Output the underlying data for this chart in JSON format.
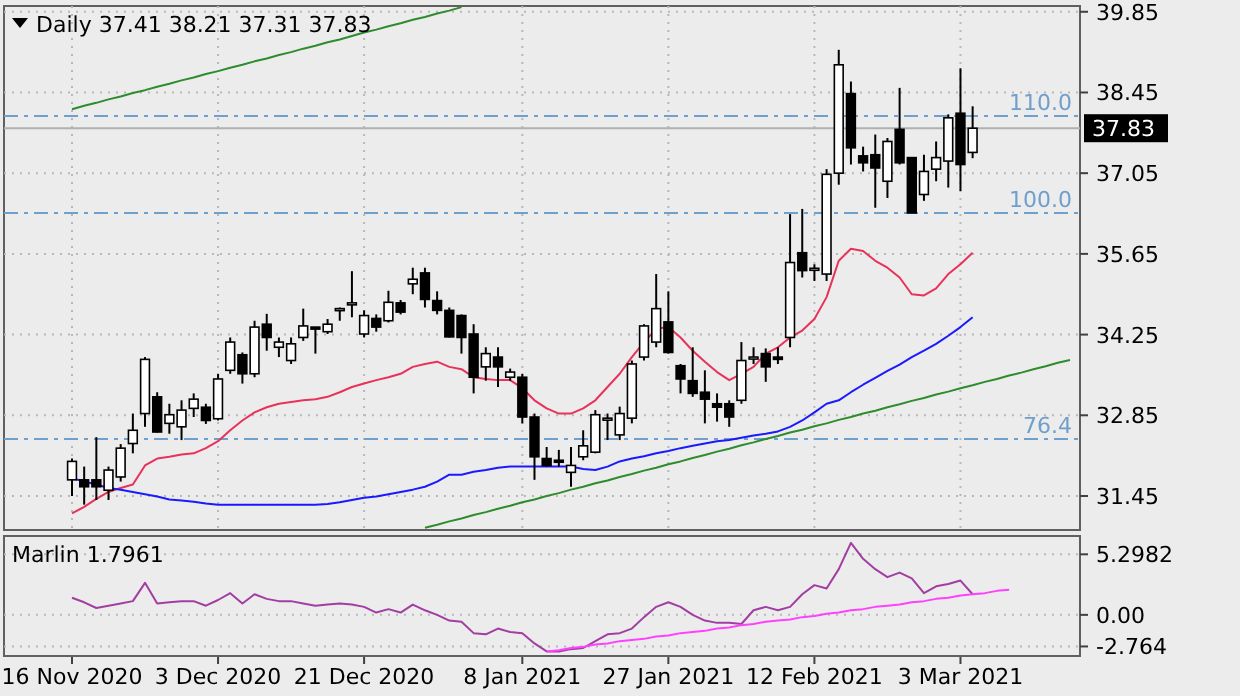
{
  "chart_data": [
    {
      "type": "candlestick",
      "title": "Daily 37.41 38.21 37.31 37.83",
      "categories": [
        "16 Nov 2020",
        null,
        null,
        null,
        null,
        null,
        null,
        null,
        null,
        null,
        null,
        null,
        "3 Dec 2020",
        null,
        null,
        null,
        null,
        null,
        null,
        null,
        null,
        null,
        null,
        null,
        "21 Dec 2020",
        null,
        null,
        null,
        null,
        null,
        null,
        null,
        null,
        null,
        null,
        null,
        null,
        "8 Jan 2021",
        null,
        null,
        null,
        null,
        null,
        null,
        null,
        null,
        null,
        null,
        null,
        "27 Jan 2021",
        null,
        null,
        null,
        null,
        null,
        null,
        null,
        null,
        null,
        null,
        null,
        "12 Feb 2021",
        null,
        null,
        null,
        null,
        null,
        null,
        null,
        null,
        null,
        null,
        null,
        "3 Mar 2021",
        null,
        null,
        null,
        null,
        null,
        null,
        null,
        null,
        null
      ],
      "ohlc": [
        [
          31.73,
          32.1,
          31.45,
          32.05
        ],
        [
          31.73,
          31.96,
          31.3,
          31.61
        ],
        [
          31.73,
          32.47,
          31.38,
          31.61
        ],
        [
          31.55,
          31.96,
          31.38,
          31.9
        ],
        [
          31.78,
          32.35,
          31.7,
          32.28
        ],
        [
          32.36,
          32.88,
          32.19,
          32.59
        ],
        [
          32.88,
          33.86,
          32.65,
          33.82
        ],
        [
          33.17,
          33.25,
          32.55,
          32.56
        ],
        [
          32.71,
          33.05,
          32.53,
          32.86
        ],
        [
          32.65,
          33.11,
          32.42,
          32.94
        ],
        [
          32.97,
          33.23,
          32.82,
          33.13
        ],
        [
          32.99,
          33.05,
          32.7,
          32.76
        ],
        [
          32.79,
          33.57,
          32.76,
          33.48
        ],
        [
          33.63,
          34.2,
          33.57,
          34.12
        ],
        [
          33.9,
          33.94,
          33.4,
          33.57
        ],
        [
          33.57,
          34.49,
          33.51,
          34.38
        ],
        [
          34.43,
          34.61,
          33.97,
          34.2
        ],
        [
          34.03,
          34.2,
          33.86,
          34.12
        ],
        [
          33.8,
          34.2,
          33.74,
          34.09
        ],
        [
          34.2,
          34.7,
          34.14,
          34.4
        ],
        [
          34.38,
          34.38,
          33.92,
          34.35
        ],
        [
          34.3,
          34.52,
          34.26,
          34.43
        ],
        [
          34.67,
          34.72,
          34.49,
          34.7
        ],
        [
          34.77,
          35.35,
          34.55,
          34.8
        ],
        [
          34.26,
          34.67,
          34.2,
          34.58
        ],
        [
          34.53,
          34.6,
          34.3,
          34.38
        ],
        [
          34.49,
          35.01,
          34.46,
          34.81
        ],
        [
          34.8,
          34.85,
          34.6,
          34.64
        ],
        [
          35.13,
          35.41,
          34.95,
          35.21
        ],
        [
          35.32,
          35.41,
          34.72,
          34.86
        ],
        [
          34.84,
          35.0,
          34.6,
          34.67
        ],
        [
          34.67,
          34.72,
          34.2,
          34.21
        ],
        [
          34.58,
          34.6,
          33.92,
          34.2
        ],
        [
          34.26,
          34.43,
          33.23,
          33.51
        ],
        [
          33.69,
          34.03,
          33.45,
          33.92
        ],
        [
          33.86,
          34.03,
          33.34,
          33.69
        ],
        [
          33.51,
          33.66,
          33.45,
          33.6
        ],
        [
          33.51,
          33.57,
          32.71,
          32.82
        ],
        [
          32.82,
          32.88,
          31.73,
          32.13
        ],
        [
          32.1,
          32.3,
          31.96,
          31.98
        ],
        [
          32.07,
          32.25,
          31.96,
          32.05
        ],
        [
          31.86,
          32.3,
          31.61,
          31.98
        ],
        [
          32.13,
          32.59,
          32.07,
          32.32
        ],
        [
          32.21,
          32.94,
          32.19,
          32.86
        ],
        [
          32.78,
          32.88,
          32.42,
          32.8
        ],
        [
          32.51,
          33.0,
          32.42,
          32.88
        ],
        [
          32.8,
          33.8,
          32.71,
          33.74
        ],
        [
          33.86,
          34.43,
          33.8,
          34.4
        ],
        [
          34.12,
          35.3,
          34.03,
          34.7
        ],
        [
          34.47,
          35.0,
          33.92,
          33.94
        ],
        [
          33.71,
          33.74,
          33.23,
          33.48
        ],
        [
          33.45,
          34.03,
          33.17,
          33.23
        ],
        [
          33.25,
          33.63,
          32.71,
          33.13
        ],
        [
          33.05,
          33.23,
          32.74,
          32.99
        ],
        [
          33.05,
          33.11,
          32.65,
          32.82
        ],
        [
          33.11,
          34.12,
          33.05,
          33.8
        ],
        [
          33.84,
          34.03,
          33.74,
          33.86
        ],
        [
          33.92,
          34.01,
          33.43,
          33.69
        ],
        [
          33.86,
          34.03,
          33.74,
          33.82
        ],
        [
          34.2,
          36.34,
          34.03,
          35.5
        ],
        [
          35.67,
          36.43,
          35.24,
          35.36
        ],
        [
          35.38,
          35.47,
          35.18,
          35.4
        ],
        [
          35.3,
          37.12,
          35.18,
          37.03
        ],
        [
          37.05,
          39.19,
          36.85,
          38.93
        ],
        [
          38.43,
          38.64,
          37.2,
          37.49
        ],
        [
          37.35,
          37.51,
          37.08,
          37.23
        ],
        [
          37.37,
          37.72,
          36.45,
          37.14
        ],
        [
          36.91,
          37.66,
          36.62,
          37.6
        ],
        [
          37.81,
          38.53,
          37.2,
          37.23
        ],
        [
          37.32,
          37.32,
          36.36,
          36.36
        ],
        [
          36.68,
          37.37,
          36.57,
          37.08
        ],
        [
          37.12,
          37.6,
          36.91,
          37.32
        ],
        [
          37.26,
          38.07,
          36.8,
          38.01
        ],
        [
          38.09,
          38.87,
          36.74,
          37.2
        ],
        [
          37.41,
          38.21,
          37.31,
          37.83
        ],
        null,
        null,
        null,
        null,
        null,
        null,
        null,
        null
      ],
      "series": [
        {
          "type": "line",
          "color": "#e8325a",
          "values": [
            31.15,
            31.26,
            31.4,
            31.52,
            31.59,
            31.65,
            31.98,
            32.1,
            32.13,
            32.17,
            32.19,
            32.28,
            32.4,
            32.59,
            32.76,
            32.9,
            32.99,
            33.05,
            33.08,
            33.11,
            33.13,
            33.17,
            33.25,
            33.34,
            33.4,
            33.46,
            33.51,
            33.57,
            33.69,
            33.74,
            33.78,
            33.69,
            33.65,
            33.51,
            33.48,
            33.46,
            33.46,
            33.32,
            33.11,
            32.97,
            32.88,
            32.88,
            32.97,
            33.11,
            33.34,
            33.57,
            33.86,
            34.12,
            34.35,
            34.38,
            34.2,
            33.97,
            33.78,
            33.6,
            33.46,
            33.57,
            33.69,
            33.92,
            34.03,
            34.2,
            34.32,
            34.52,
            34.9,
            35.53,
            35.74,
            35.7,
            35.53,
            35.41,
            35.24,
            34.95,
            34.93,
            35.05,
            35.3,
            35.47,
            35.67,
            null,
            null,
            null,
            null,
            null,
            null,
            null,
            null
          ]
        },
        {
          "type": "line",
          "color": "#1a1aff",
          "values": [
            31.76,
            31.7,
            31.65,
            31.59,
            31.56,
            31.52,
            31.48,
            31.44,
            31.39,
            31.37,
            31.35,
            31.32,
            31.3,
            31.3,
            31.3,
            31.3,
            31.3,
            31.3,
            31.3,
            31.3,
            31.3,
            31.31,
            31.34,
            31.38,
            31.42,
            31.44,
            31.48,
            31.52,
            31.56,
            31.61,
            31.7,
            31.82,
            31.82,
            31.87,
            31.9,
            31.94,
            31.96,
            31.96,
            31.96,
            31.96,
            31.96,
            31.96,
            31.92,
            31.9,
            31.96,
            32.05,
            32.1,
            32.14,
            32.19,
            32.23,
            32.28,
            32.32,
            32.36,
            32.4,
            32.42,
            32.46,
            32.5,
            32.53,
            32.57,
            32.65,
            32.76,
            32.9,
            33.05,
            33.11,
            33.25,
            33.38,
            33.5,
            33.62,
            33.73,
            33.86,
            33.97,
            34.09,
            34.23,
            34.38,
            34.55,
            null,
            null,
            null,
            null,
            null,
            null,
            null,
            null
          ]
        },
        {
          "type": "line",
          "color": "#2e8b2e",
          "values": [
            38.16,
            38.22,
            38.27,
            38.33,
            38.38,
            38.44,
            38.49,
            38.55,
            38.6,
            38.66,
            38.71,
            38.77,
            38.82,
            38.88,
            38.93,
            38.99,
            39.04,
            39.1,
            39.15,
            39.21,
            39.26,
            39.32,
            39.37,
            39.43,
            39.49,
            39.54,
            39.6,
            39.65,
            39.71,
            39.76,
            39.82,
            39.87,
            39.93,
            null,
            null,
            null,
            null,
            null,
            null,
            null,
            null,
            null,
            null,
            null,
            null,
            null,
            null,
            null,
            null,
            null,
            null,
            null,
            null,
            null,
            null,
            null,
            null,
            null,
            null,
            null,
            null,
            null,
            null,
            null,
            null,
            null,
            null,
            null,
            null,
            null,
            null,
            null,
            null,
            null,
            null,
            null,
            null,
            null,
            null,
            null,
            null,
            null,
            null
          ]
        },
        {
          "type": "line",
          "color": "#2e8b2e",
          "values": [
            null,
            null,
            null,
            null,
            null,
            null,
            null,
            null,
            null,
            null,
            null,
            null,
            null,
            null,
            null,
            null,
            null,
            null,
            null,
            null,
            null,
            null,
            null,
            null,
            null,
            null,
            null,
            null,
            null,
            30.9,
            30.95,
            31.01,
            31.06,
            31.12,
            31.17,
            31.23,
            31.28,
            31.34,
            31.39,
            31.45,
            31.5,
            31.56,
            31.61,
            31.67,
            31.72,
            31.78,
            31.83,
            31.89,
            31.94,
            32.0,
            32.05,
            32.11,
            32.16,
            32.22,
            32.27,
            32.33,
            32.38,
            32.44,
            32.49,
            32.55,
            32.6,
            32.66,
            32.71,
            32.77,
            32.82,
            32.88,
            32.93,
            32.99,
            33.04,
            33.1,
            33.15,
            33.21,
            33.26,
            33.32,
            33.37,
            33.43,
            33.48,
            33.54,
            33.59,
            33.65,
            33.7,
            33.76,
            33.81
          ]
        }
      ],
      "ylim": [
        30.86,
        39.95
      ],
      "yticks": [
        31.45,
        32.85,
        34.25,
        35.65,
        37.05,
        38.45,
        39.85
      ],
      "ref_lines": [
        {
          "axis": "y",
          "value": 38.04,
          "color": "#6f9fcc",
          "line_style": "dashed"
        },
        {
          "axis": "y",
          "value": 36.36,
          "color": "#6f9fcc",
          "line_style": "dashed"
        },
        {
          "axis": "y",
          "value": 32.44,
          "color": "#6f9fcc",
          "line_style": "dashed"
        },
        {
          "axis": "y",
          "value": 37.83,
          "label": "37.83",
          "color": "#b0b0b0",
          "line_style": "solid"
        }
      ],
      "annotations": [
        {
          "text": "110.0",
          "y": 38.04
        },
        {
          "text": "100.0",
          "y": 36.36
        },
        {
          "text": "76.4",
          "y": 32.44
        }
      ],
      "grid": true
    },
    {
      "type": "line",
      "title": "Marlin 1.7961",
      "tick_labels": "y",
      "series": [
        {
          "color": "#a23ea2",
          "values": [
            1.5,
            1.1,
            0.6,
            0.8,
            1.0,
            1.2,
            2.8,
            1.0,
            1.1,
            1.2,
            1.2,
            0.8,
            1.3,
            1.9,
            1.0,
            1.8,
            1.4,
            1.2,
            1.2,
            1.0,
            0.8,
            0.9,
            1.0,
            0.9,
            0.7,
            0.2,
            0.5,
            0.2,
            0.9,
            0.4,
            0.0,
            -0.5,
            -0.6,
            -1.6,
            -1.7,
            -1.2,
            -1.5,
            -1.6,
            -2.5,
            -3.2,
            -3.2,
            -3.0,
            -2.9,
            -2.3,
            -1.7,
            -1.6,
            -1.2,
            -0.2,
            0.7,
            1.1,
            0.7,
            0.0,
            -0.5,
            -0.7,
            -0.7,
            -0.8,
            0.4,
            0.7,
            0.4,
            0.7,
            1.8,
            2.6,
            2.3,
            4.0,
            6.3,
            4.9,
            4.0,
            3.3,
            3.7,
            3.2,
            1.9,
            2.5,
            2.7,
            3.0,
            1.8,
            null,
            null,
            null,
            null,
            null,
            null,
            null,
            null
          ]
        },
        {
          "color": "#ff40ff",
          "values": [
            null,
            null,
            null,
            null,
            null,
            null,
            null,
            null,
            null,
            null,
            null,
            null,
            null,
            null,
            null,
            null,
            null,
            null,
            null,
            null,
            null,
            null,
            null,
            null,
            null,
            null,
            null,
            null,
            null,
            null,
            null,
            null,
            null,
            null,
            null,
            null,
            null,
            null,
            null,
            -3.2,
            -3.1,
            -2.9,
            -2.8,
            -2.6,
            -2.5,
            -2.3,
            -2.2,
            -2.1,
            -1.9,
            -1.8,
            -1.6,
            -1.5,
            -1.4,
            -1.2,
            -1.1,
            -0.9,
            -0.8,
            -0.6,
            -0.5,
            -0.4,
            -0.2,
            -0.1,
            0.1,
            0.2,
            0.4,
            0.5,
            0.7,
            0.8,
            0.9,
            1.1,
            1.2,
            1.4,
            1.5,
            1.7,
            1.8,
            1.9,
            2.1,
            2.2,
            null,
            null,
            null,
            null,
            null
          ]
        }
      ],
      "ylim": [
        -3.6,
        6.9
      ],
      "yticks": [
        5.2982,
        {
          "value": 0,
          "label": "0.00"
        },
        -2.764
      ],
      "grid": true
    }
  ]
}
